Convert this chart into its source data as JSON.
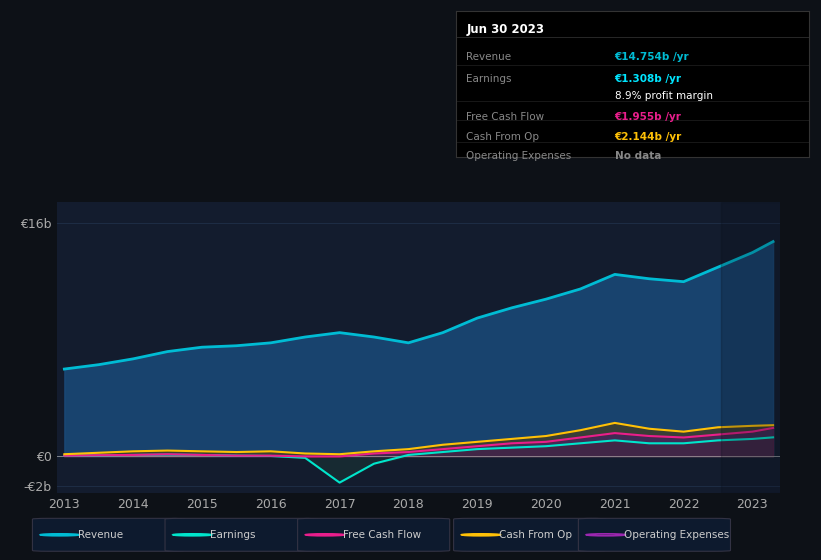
{
  "bg_color": "#0d1117",
  "plot_bg_color": "#131c2e",
  "grid_color": "#1e2d45",
  "title_box": {
    "date": "Jun 30 2023",
    "rows": [
      {
        "label": "Revenue",
        "value": "€14.754b /yr",
        "value_color": "#00bcd4"
      },
      {
        "label": "Earnings",
        "value": "€1.308b /yr",
        "value_color": "#00e5ff"
      },
      {
        "label": "",
        "value": "8.9% profit margin",
        "value_color": "#ffffff"
      },
      {
        "label": "Free Cash Flow",
        "value": "€1.955b /yr",
        "value_color": "#e91e8c"
      },
      {
        "label": "Cash From Op",
        "value": "€2.144b /yr",
        "value_color": "#ffc107"
      },
      {
        "label": "Operating Expenses",
        "value": "No data",
        "value_color": "#888888"
      }
    ]
  },
  "years": [
    2013.0,
    2013.5,
    2014.0,
    2014.5,
    2015.0,
    2015.5,
    2016.0,
    2016.5,
    2017.0,
    2017.5,
    2018.0,
    2018.5,
    2019.0,
    2019.5,
    2020.0,
    2020.5,
    2021.0,
    2021.5,
    2022.0,
    2022.5,
    2023.0,
    2023.3
  ],
  "revenue": [
    6.0,
    6.3,
    6.7,
    7.2,
    7.5,
    7.6,
    7.8,
    8.2,
    8.5,
    8.2,
    7.8,
    8.5,
    9.5,
    10.2,
    10.8,
    11.5,
    12.5,
    12.2,
    12.0,
    13.0,
    14.0,
    14.754
  ],
  "earnings": [
    0.05,
    0.07,
    0.1,
    0.12,
    0.1,
    0.05,
    0.03,
    -0.1,
    -1.8,
    -0.5,
    0.1,
    0.3,
    0.5,
    0.6,
    0.7,
    0.9,
    1.1,
    0.9,
    0.9,
    1.1,
    1.2,
    1.308
  ],
  "free_cash_flow": [
    0.05,
    0.08,
    0.1,
    0.15,
    0.1,
    0.05,
    0.05,
    0.0,
    0.0,
    0.2,
    0.3,
    0.5,
    0.7,
    0.9,
    1.0,
    1.3,
    1.6,
    1.4,
    1.3,
    1.5,
    1.7,
    1.955
  ],
  "cash_from_op": [
    0.15,
    0.25,
    0.35,
    0.4,
    0.35,
    0.3,
    0.35,
    0.2,
    0.15,
    0.35,
    0.5,
    0.8,
    1.0,
    1.2,
    1.4,
    1.8,
    2.3,
    1.9,
    1.7,
    2.0,
    2.1,
    2.144
  ],
  "ylim": [
    -2.5,
    17.5
  ],
  "yticks": [
    -2,
    0,
    16
  ],
  "ytick_labels": [
    "-€2b",
    "€0",
    "€16b"
  ],
  "xticks": [
    2013,
    2014,
    2015,
    2016,
    2017,
    2018,
    2019,
    2020,
    2021,
    2022,
    2023
  ],
  "revenue_color": "#00bcd4",
  "revenue_fill_color": "#1a4a7a",
  "earnings_color": "#00e5cc",
  "earnings_fill_color": "#0d3535",
  "fcf_color": "#e91e8c",
  "fcf_fill_color": "#5a1a3a",
  "cfop_color": "#ffc107",
  "cfop_fill_alpha": 0.5,
  "legend_items": [
    {
      "label": "Revenue",
      "color": "#00bcd4",
      "filled": true
    },
    {
      "label": "Earnings",
      "color": "#00e5cc",
      "filled": true
    },
    {
      "label": "Free Cash Flow",
      "color": "#e91e8c",
      "filled": true
    },
    {
      "label": "Cash From Op",
      "color": "#ffc107",
      "filled": true
    },
    {
      "label": "Operating Expenses",
      "color": "#9c27b0",
      "filled": false
    }
  ]
}
